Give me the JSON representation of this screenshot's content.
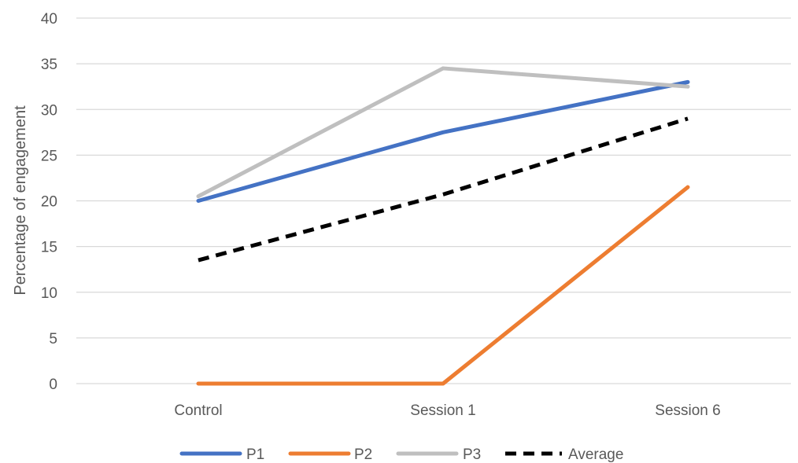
{
  "chart_data": {
    "type": "line",
    "title": "",
    "xlabel": "",
    "ylabel": "Percentage of engagement",
    "ylim": [
      0,
      40
    ],
    "yticks": [
      0,
      5,
      10,
      15,
      20,
      25,
      30,
      35,
      40
    ],
    "grid": true,
    "legend_position": "bottom",
    "categories": [
      "Control",
      "Session 1",
      "Session 6"
    ],
    "series": [
      {
        "name": "P1",
        "values": [
          20,
          27.5,
          33
        ],
        "color": "#4472C4",
        "dash": "solid"
      },
      {
        "name": "P2",
        "values": [
          0,
          0,
          21.5
        ],
        "color": "#ED7D31",
        "dash": "solid"
      },
      {
        "name": "P3",
        "values": [
          20.5,
          34.5,
          32.5
        ],
        "color": "#BFBFBF",
        "dash": "solid"
      },
      {
        "name": "Average",
        "values": [
          13.5,
          20.7,
          29
        ],
        "color": "#000000",
        "dash": "dashed"
      }
    ]
  }
}
